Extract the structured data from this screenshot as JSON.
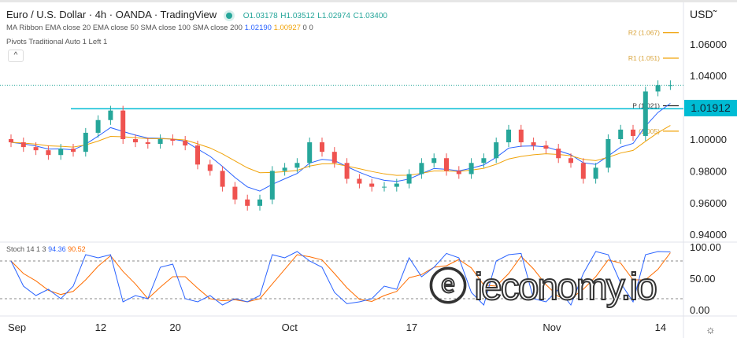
{
  "header": {
    "title": "Euro / U.S. Dollar · 4h · OANDA · TradingView",
    "open": "O1.03178",
    "high": "H1.03512",
    "low": "L1.02974",
    "close": "C1.03400",
    "ma_label": "MA Ribbon EMA close 20 EMA close 50 SMA close 100 SMA close 200",
    "ma_v1": "1.02190",
    "ma_v2": "1.00927",
    "ma_v3": "0",
    "ma_v4": "0",
    "pivots_label": "Pivots Traditional Auto 1 Left 1",
    "collapse": "^"
  },
  "axis": {
    "currency": "USD",
    "price_ticks": [
      "1.06000",
      "1.04000",
      "1.00000",
      "0.98000",
      "0.96000",
      "0.94000"
    ],
    "last_price": "1.01912",
    "stoch_ticks": [
      "100.00",
      "50.00",
      "0.00"
    ],
    "dates": [
      "Sep",
      "12",
      "20",
      "Oct",
      "17",
      "Nov",
      "14"
    ]
  },
  "stoch": {
    "label": "Stoch 14 1 3",
    "k": "94.36",
    "d": "90.52"
  },
  "pivots": {
    "R2": "R2 (1.067)",
    "R1": "R1 (1.051)",
    "P": "P (1.021)",
    "S1": "(1.005)"
  },
  "watermark": "ieconomy.io",
  "colors": {
    "up": "#26a69a",
    "down": "#ef5350",
    "ema20": "#2962ff",
    "ema50": "#f0a30a",
    "level": "#00bcd4",
    "stochK": "#2962ff",
    "stochD": "#ff6d00"
  },
  "chart_data": {
    "type": "candlestick",
    "interval": "4h",
    "ylim": [
      0.94,
      1.07
    ],
    "grid": false,
    "dates": [
      "Sep 1",
      "Sep 2",
      "Sep 5",
      "Sep 6",
      "Sep 7",
      "Sep 8",
      "Sep 9",
      "Sep 12",
      "Sep 13",
      "Sep 14",
      "Sep 15",
      "Sep 16",
      "Sep 19",
      "Sep 20",
      "Sep 21",
      "Sep 22",
      "Sep 23",
      "Sep 26",
      "Sep 27",
      "Sep 28",
      "Sep 29",
      "Sep 30",
      "Oct 3",
      "Oct 4",
      "Oct 5",
      "Oct 6",
      "Oct 7",
      "Oct 10",
      "Oct 11",
      "Oct 12",
      "Oct 13",
      "Oct 14",
      "Oct 17",
      "Oct 18",
      "Oct 19",
      "Oct 20",
      "Oct 21",
      "Oct 24",
      "Oct 25",
      "Oct 26",
      "Oct 27",
      "Oct 28",
      "Oct 31",
      "Nov 1",
      "Nov 2",
      "Nov 3",
      "Nov 4",
      "Nov 7",
      "Nov 8",
      "Nov 9",
      "Nov 10",
      "Nov 11",
      "Nov 14",
      "Nov 15"
    ],
    "close": [
      0.998,
      0.995,
      0.993,
      0.99,
      0.994,
      0.992,
      1.004,
      1.012,
      1.018,
      1.0,
      0.998,
      0.997,
      1.0,
      0.999,
      0.996,
      0.984,
      0.98,
      0.97,
      0.962,
      0.958,
      0.962,
      0.98,
      0.982,
      0.985,
      0.998,
      0.992,
      0.985,
      0.975,
      0.972,
      0.97,
      0.97,
      0.972,
      0.978,
      0.985,
      0.988,
      0.98,
      0.978,
      0.985,
      0.988,
      0.998,
      1.006,
      0.998,
      0.996,
      0.994,
      0.988,
      0.985,
      0.975,
      0.982,
      1.0,
      1.006,
      1.002,
      1.03,
      1.034,
      1.034
    ],
    "stoch_k": [
      80,
      40,
      25,
      35,
      20,
      40,
      90,
      85,
      90,
      15,
      25,
      20,
      70,
      75,
      20,
      15,
      25,
      10,
      20,
      15,
      25,
      90,
      85,
      95,
      80,
      70,
      30,
      12,
      15,
      20,
      40,
      35,
      85,
      55,
      70,
      92,
      85,
      30,
      10,
      80,
      90,
      92,
      20,
      15,
      35,
      10,
      60,
      95,
      90,
      45,
      15,
      90,
      95,
      94.36
    ],
    "horizontal_level": 1.01912,
    "last_price": 1.034,
    "pivot_levels": {
      "R2": 1.067,
      "R1": 1.051,
      "P": 1.021,
      "S1": 1.005
    }
  }
}
